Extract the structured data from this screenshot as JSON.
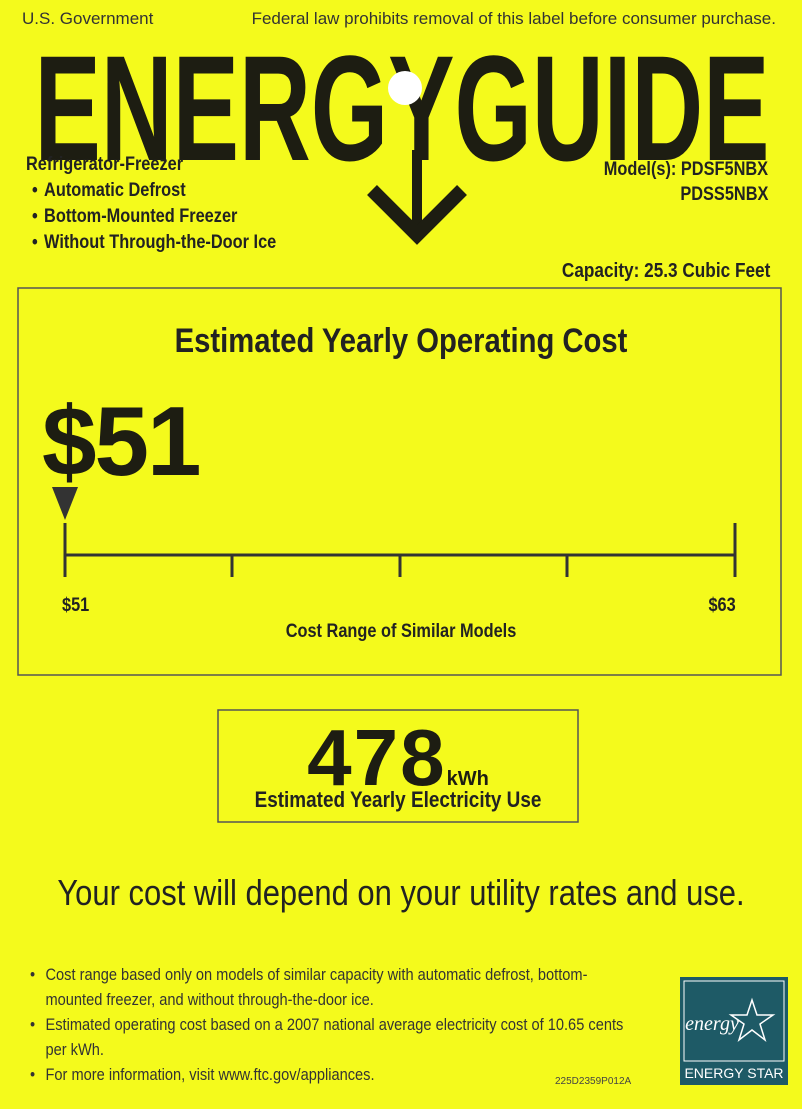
{
  "header": {
    "issuer": "U.S. Government",
    "notice": "Federal law prohibits removal of this label before consumer purchase."
  },
  "logo": "ENERGYGUIDE",
  "appliance": {
    "type": "Refrigerator-Freezer",
    "features": [
      "Automatic Defrost",
      "Bottom-Mounted Freezer",
      "Without Through-the-Door Ice"
    ],
    "models_label": "Model(s):",
    "models": [
      "PDSF5NBX",
      "PDSS5NBX"
    ],
    "capacity": "Capacity: 25.3 Cubic Feet"
  },
  "cost": {
    "title": "Estimated Yearly Operating Cost",
    "amount": "$51",
    "range_low": "$51",
    "range_high": "$63",
    "range_label": "Cost Range of Similar Models"
  },
  "electricity": {
    "amount": "478",
    "unit": "kWh",
    "label": "Estimated Yearly Electricity Use"
  },
  "footer": {
    "headline": "Your cost will depend on your utility rates and use.",
    "bullets": [
      "Cost range based only on models of similar capacity with automatic defrost, bottom-mounted freezer, and without through-the-door ice.",
      "Estimated operating cost based on a 2007 national average electricity cost of 10.65 cents per kWh.",
      "For more information, visit www.ftc.gov/appliances."
    ],
    "code": "225D2359P012A",
    "energy_star_script": "energy",
    "energy_star": "ENERGY STAR"
  }
}
